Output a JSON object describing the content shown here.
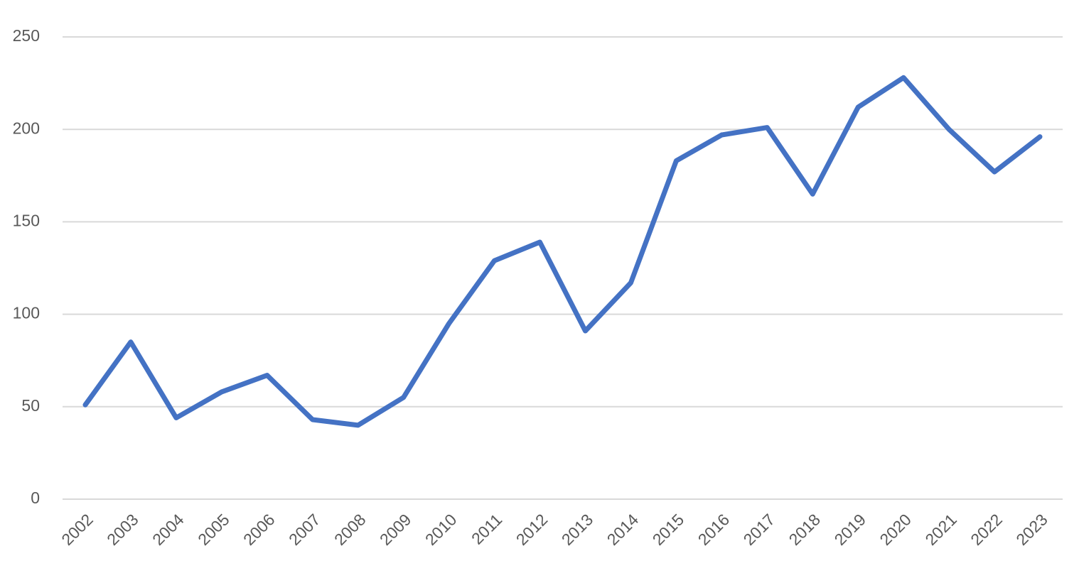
{
  "chart_data": {
    "type": "line",
    "categories": [
      "2002",
      "2003",
      "2004",
      "2005",
      "2006",
      "2007",
      "2008",
      "2009",
      "2010",
      "2011",
      "2012",
      "2013",
      "2014",
      "2015",
      "2016",
      "2017",
      "2018",
      "2019",
      "2020",
      "2021",
      "2022",
      "2023"
    ],
    "values": [
      51,
      85,
      44,
      58,
      67,
      43,
      40,
      55,
      95,
      129,
      139,
      91,
      117,
      183,
      197,
      201,
      165,
      212,
      228,
      200,
      177,
      196
    ],
    "color": "#4472c4",
    "ylim": [
      0,
      250
    ],
    "yticks": [
      0,
      50,
      100,
      150,
      200,
      250
    ],
    "grid": true
  }
}
